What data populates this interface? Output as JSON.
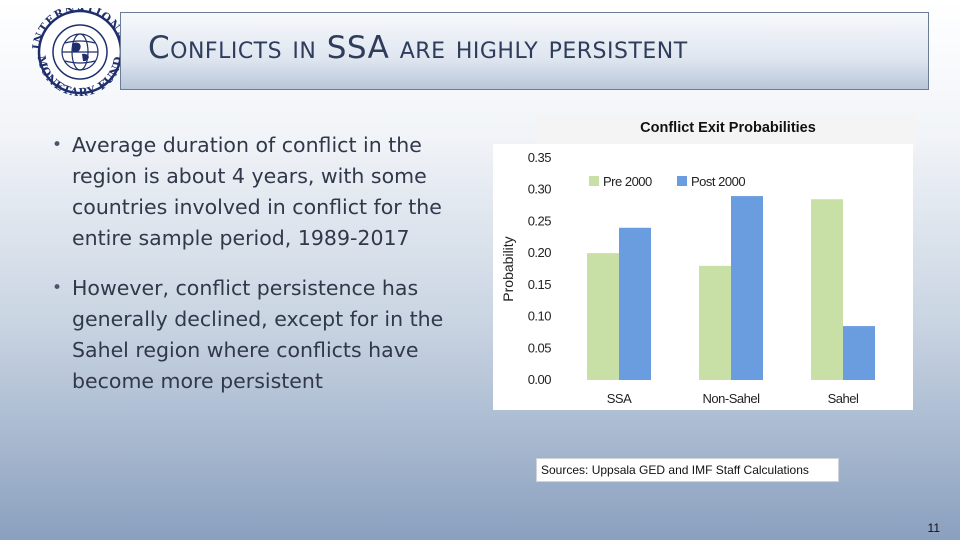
{
  "logo": {
    "text_top": "INTERNATIONAL",
    "text_bottom": "MONETARY FUND",
    "color": "#1f2f6e"
  },
  "title": "Conflicts in SSA are highly persistent",
  "bullets": [
    "Average duration of conflict in the region is about 4 years, with some countries involved in conflict for the entire sample period, 1989-2017",
    "However, conflict persistence has generally declined, except for in the Sahel region where conflicts have become more persistent"
  ],
  "chart_data": {
    "type": "bar",
    "title": "Conflict Exit Probabilities",
    "ylabel": "Probability",
    "xlabel": "",
    "categories": [
      "SSA",
      "Non-Sahel",
      "Sahel"
    ],
    "series": [
      {
        "name": "Pre 2000",
        "color": "#c8dfa6",
        "values": [
          0.2,
          0.18,
          0.285
        ]
      },
      {
        "name": "Post 2000",
        "color": "#6a9de0",
        "values": [
          0.24,
          0.29,
          0.085
        ]
      }
    ],
    "ylim": [
      0,
      0.35
    ],
    "yticks": [
      "0.00",
      "0.05",
      "0.10",
      "0.15",
      "0.20",
      "0.25",
      "0.30",
      "0.35"
    ],
    "legend": "top-left",
    "grid": false
  },
  "source": "Sources: Uppsala GED and IMF Staff Calculations",
  "page_number": "11"
}
